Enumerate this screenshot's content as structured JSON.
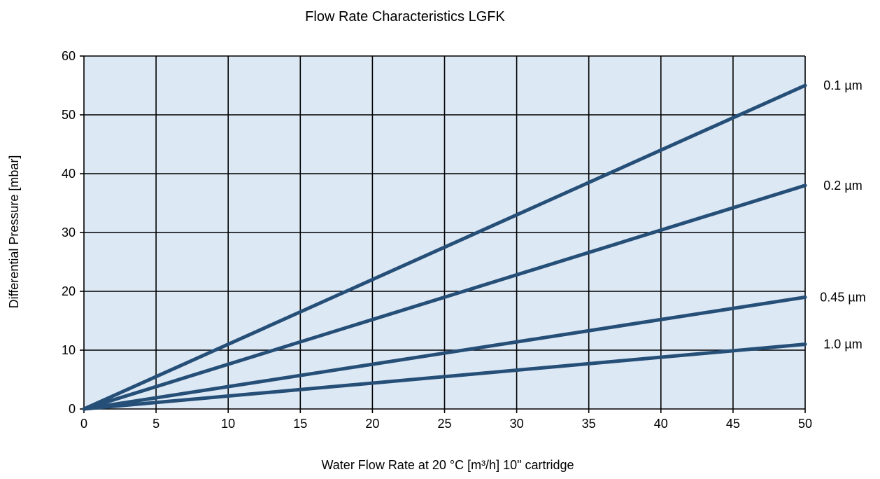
{
  "chart_data": {
    "type": "line",
    "title": "Flow Rate Characteristics LGFK",
    "xlabel": "Water Flow Rate at 20 °C [m³/h] 10\" cartridge",
    "ylabel": "Differential Pressure [mbar]",
    "xlim": [
      0,
      50
    ],
    "ylim": [
      0,
      60
    ],
    "x_ticks": [
      0,
      5,
      10,
      15,
      20,
      25,
      30,
      35,
      40,
      45,
      50
    ],
    "y_ticks": [
      0,
      10,
      20,
      30,
      40,
      50,
      60
    ],
    "grid": true,
    "legend": "inline-right",
    "colors": {
      "plot_background": "#dde8f5",
      "grid": "#000000",
      "line": "#264f78"
    },
    "series": [
      {
        "name": "0.1 µm",
        "x": [
          0,
          50
        ],
        "y": [
          0,
          55
        ]
      },
      {
        "name": "0.2 µm",
        "x": [
          0,
          50
        ],
        "y": [
          0,
          38
        ]
      },
      {
        "name": "0.45 µm",
        "x": [
          0,
          50
        ],
        "y": [
          0,
          19
        ]
      },
      {
        "name": "1.0 µm",
        "x": [
          0,
          50
        ],
        "y": [
          0,
          11
        ]
      }
    ]
  }
}
